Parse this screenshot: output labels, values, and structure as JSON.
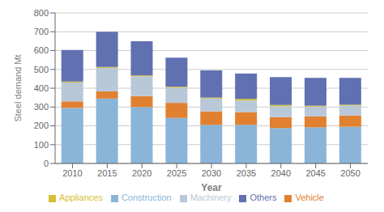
{
  "chart_data": {
    "type": "bar",
    "stacked": true,
    "xlabel": "Year",
    "ylabel": "Steel demand Mt",
    "categories": [
      "2010",
      "2015",
      "2020",
      "2025",
      "2030",
      "2035",
      "2040",
      "2045",
      "2050"
    ],
    "series": [
      {
        "name": "Construction",
        "color": "#8ab4d8",
        "values": [
          295,
          345,
          300,
          242,
          205,
          205,
          188,
          192,
          195
        ]
      },
      {
        "name": "Vehicle",
        "color": "#e08030",
        "values": [
          35,
          38,
          58,
          80,
          72,
          68,
          58,
          58,
          60
        ]
      },
      {
        "name": "Machinery",
        "color": "#b8c8d8",
        "values": [
          100,
          125,
          105,
          80,
          68,
          62,
          58,
          52,
          52
        ]
      },
      {
        "name": "Appliances",
        "color": "#d4c030",
        "values": [
          5,
          5,
          5,
          5,
          5,
          8,
          7,
          5,
          5
        ]
      },
      {
        "name": "Others",
        "color": "#6070b0",
        "values": [
          168,
          187,
          182,
          155,
          145,
          135,
          148,
          148,
          143
        ]
      }
    ],
    "ylim": [
      0,
      800
    ],
    "yticks": [
      0,
      100,
      200,
      300,
      400,
      500,
      600,
      700,
      800
    ],
    "grid": true,
    "legend": "bottom"
  }
}
